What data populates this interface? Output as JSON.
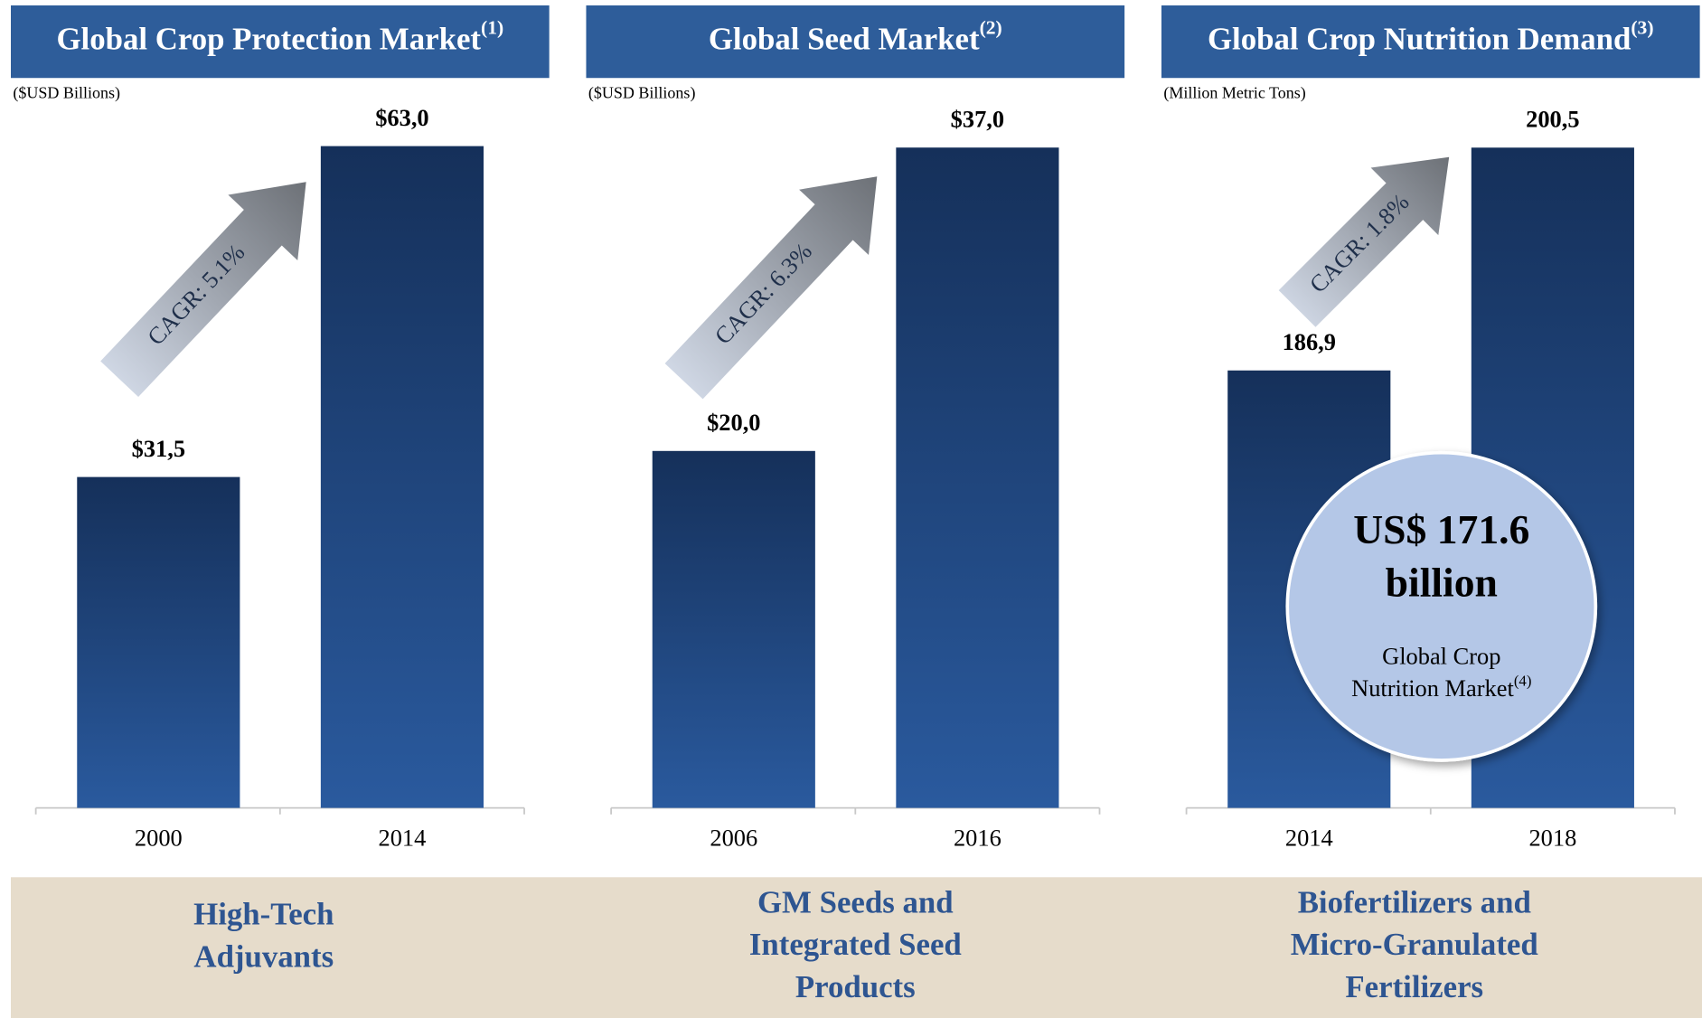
{
  "chart_data": [
    {
      "type": "bar",
      "title": "Global Crop Protection Market",
      "title_note": "(1)",
      "subtitle": "($USD Billions)",
      "categories": [
        "2000",
        "2014"
      ],
      "values": [
        31.5,
        63.0
      ],
      "value_labels": [
        "$31,5",
        "$63,0"
      ],
      "color": "#1d3f73",
      "ylim": [
        0,
        66.6
      ],
      "annotation": "CAGR: 5.1%",
      "caption": [
        "High-Tech",
        "Adjuvants"
      ]
    },
    {
      "type": "bar",
      "title": "Global Seed Market",
      "title_note": "(2)",
      "subtitle": "($USD Billions)",
      "categories": [
        "2006",
        "2016"
      ],
      "values": [
        20.0,
        37.0
      ],
      "value_labels": [
        "$20,0",
        "$37,0"
      ],
      "color": "#1d3f73",
      "ylim": [
        0,
        39.2
      ],
      "annotation": "CAGR: 6.3%",
      "caption": [
        "GM Seeds and",
        "Integrated Seed",
        "Products"
      ]
    },
    {
      "type": "bar",
      "title": "Global Crop Nutrition Demand",
      "title_note": "(3)",
      "subtitle": "(Million Metric Tons)",
      "categories": [
        "2014",
        "2018"
      ],
      "values": [
        186.9,
        200.5
      ],
      "value_labels": [
        "186,9",
        "200,5"
      ],
      "color": "#1d3f73",
      "ylim": [
        160.2,
        202.9
      ],
      "annotation": "CAGR: 1.8%",
      "caption": [
        "Biofertilizers and",
        "Micro-Granulated",
        "Fertilizers"
      ],
      "bubble": {
        "amount": "US$ 171.6",
        "unit": "billion",
        "line1": "Global Crop",
        "line2": "Nutrition Market",
        "note": "(4)"
      }
    }
  ]
}
